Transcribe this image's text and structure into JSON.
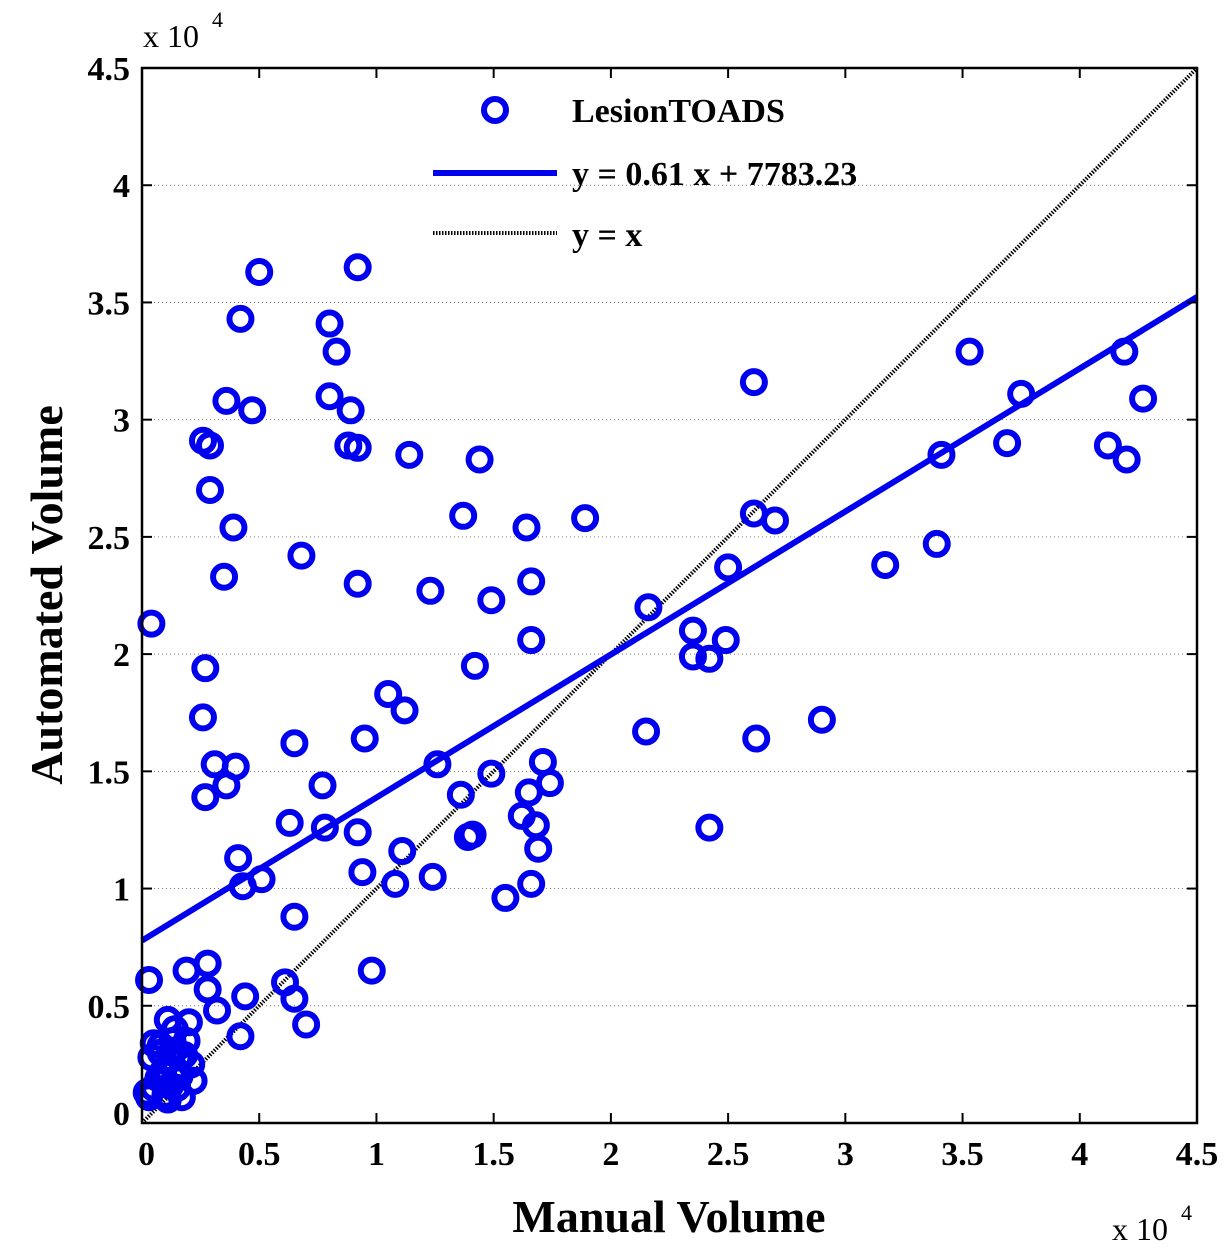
{
  "chart_data": {
    "type": "scatter",
    "xlabel": "Manual Volume",
    "ylabel": "Automated Volume",
    "x_multiplier": "x 10",
    "x_multiplier_exp": "4",
    "y_multiplier": "x 10",
    "y_multiplier_exp": "4",
    "xlim": [
      0,
      4.5
    ],
    "ylim": [
      0,
      4.5
    ],
    "xticks": [
      0,
      0.5,
      1,
      1.5,
      2,
      2.5,
      3,
      3.5,
      4,
      4.5
    ],
    "yticks": [
      0,
      0.5,
      1,
      1.5,
      2,
      2.5,
      3,
      3.5,
      4,
      4.5
    ],
    "xtick_labels": [
      "0",
      "0.5",
      "1",
      "1.5",
      "2",
      "2.5",
      "3",
      "3.5",
      "4",
      "4.5"
    ],
    "ytick_labels": [
      "0",
      "0.5",
      "1",
      "1.5",
      "2",
      "2.5",
      "3",
      "3.5",
      "4",
      "4.5"
    ],
    "grid": "y-dotted",
    "legend_position": "top-center",
    "colors": {
      "marker": "#0000ee",
      "fit": "#0000ee",
      "identity": "#000000"
    },
    "series": [
      {
        "name": "LesionTOADS",
        "kind": "scatter",
        "points": [
          [
            0.04,
            2.13
          ],
          [
            0.03,
            0.61
          ],
          [
            0.26,
            2.91
          ],
          [
            0.29,
            2.89
          ],
          [
            0.29,
            2.7
          ],
          [
            0.39,
            2.54
          ],
          [
            0.35,
            2.33
          ],
          [
            0.36,
            3.08
          ],
          [
            0.47,
            3.04
          ],
          [
            0.42,
            3.43
          ],
          [
            0.5,
            3.63
          ],
          [
            0.27,
            1.94
          ],
          [
            0.26,
            1.73
          ],
          [
            0.27,
            1.39
          ],
          [
            0.31,
            1.53
          ],
          [
            0.36,
            1.44
          ],
          [
            0.4,
            1.52
          ],
          [
            0.41,
            1.13
          ],
          [
            0.43,
            1.01
          ],
          [
            0.51,
            1.04
          ],
          [
            0.28,
            0.68
          ],
          [
            0.19,
            0.65
          ],
          [
            0.28,
            0.57
          ],
          [
            0.32,
            0.48
          ],
          [
            0.44,
            0.54
          ],
          [
            0.42,
            0.37
          ],
          [
            0.68,
            2.42
          ],
          [
            0.65,
            1.62
          ],
          [
            0.63,
            1.28
          ],
          [
            0.65,
            0.88
          ],
          [
            0.61,
            0.6
          ],
          [
            0.65,
            0.53
          ],
          [
            0.7,
            0.42
          ],
          [
            0.8,
            3.41
          ],
          [
            0.83,
            3.29
          ],
          [
            0.8,
            3.1
          ],
          [
            0.89,
            3.04
          ],
          [
            0.88,
            2.89
          ],
          [
            0.92,
            2.88
          ],
          [
            0.92,
            3.65
          ],
          [
            0.92,
            2.3
          ],
          [
            0.77,
            1.44
          ],
          [
            0.78,
            1.26
          ],
          [
            0.92,
            1.24
          ],
          [
            0.95,
            1.64
          ],
          [
            0.94,
            1.07
          ],
          [
            0.98,
            0.65
          ],
          [
            1.05,
            1.83
          ],
          [
            1.12,
            1.76
          ],
          [
            1.11,
            1.16
          ],
          [
            1.08,
            1.02
          ],
          [
            1.14,
            2.85
          ],
          [
            1.23,
            2.27
          ],
          [
            1.26,
            1.53
          ],
          [
            1.24,
            1.05
          ],
          [
            1.37,
            2.59
          ],
          [
            1.44,
            2.83
          ],
          [
            1.42,
            1.95
          ],
          [
            1.36,
            1.4
          ],
          [
            1.39,
            1.22
          ],
          [
            1.41,
            1.23
          ],
          [
            1.49,
            2.23
          ],
          [
            1.49,
            1.49
          ],
          [
            1.55,
            0.96
          ],
          [
            1.64,
            2.54
          ],
          [
            1.66,
            2.31
          ],
          [
            1.66,
            2.06
          ],
          [
            1.71,
            1.54
          ],
          [
            1.74,
            1.45
          ],
          [
            1.65,
            1.41
          ],
          [
            1.62,
            1.31
          ],
          [
            1.68,
            1.27
          ],
          [
            1.69,
            1.17
          ],
          [
            1.66,
            1.02
          ],
          [
            1.89,
            2.58
          ],
          [
            2.16,
            2.2
          ],
          [
            2.15,
            1.67
          ],
          [
            2.35,
            2.1
          ],
          [
            2.35,
            1.99
          ],
          [
            2.42,
            1.98
          ],
          [
            2.49,
            2.06
          ],
          [
            2.5,
            2.37
          ],
          [
            2.42,
            1.26
          ],
          [
            2.61,
            3.16
          ],
          [
            2.61,
            2.6
          ],
          [
            2.7,
            2.57
          ],
          [
            2.62,
            1.64
          ],
          [
            2.9,
            1.72
          ],
          [
            3.17,
            2.38
          ],
          [
            3.39,
            2.47
          ],
          [
            3.41,
            2.85
          ],
          [
            3.53,
            3.29
          ],
          [
            3.69,
            2.9
          ],
          [
            3.75,
            3.11
          ],
          [
            4.12,
            2.89
          ],
          [
            4.19,
            3.29
          ],
          [
            4.2,
            2.83
          ],
          [
            4.27,
            3.09
          ],
          [
            0.02,
            0.13
          ],
          [
            0.03,
            0.11
          ],
          [
            0.05,
            0.15
          ],
          [
            0.04,
            0.28
          ],
          [
            0.05,
            0.34
          ],
          [
            0.08,
            0.33
          ],
          [
            0.09,
            0.22
          ],
          [
            0.1,
            0.18
          ],
          [
            0.1,
            0.12
          ],
          [
            0.11,
            0.1
          ],
          [
            0.12,
            0.27
          ],
          [
            0.13,
            0.35
          ],
          [
            0.11,
            0.44
          ],
          [
            0.14,
            0.4
          ],
          [
            0.15,
            0.15
          ],
          [
            0.16,
            0.2
          ],
          [
            0.17,
            0.11
          ],
          [
            0.18,
            0.29
          ],
          [
            0.2,
            0.43
          ],
          [
            0.21,
            0.25
          ],
          [
            0.22,
            0.18
          ],
          [
            0.19,
            0.35
          ],
          [
            0.14,
            0.23
          ],
          [
            0.08,
            0.3
          ],
          [
            0.13,
            0.3
          ],
          [
            0.16,
            0.28
          ],
          [
            0.07,
            0.19
          ],
          [
            0.12,
            0.16
          ]
        ]
      },
      {
        "name": "y = 0.61 x + 7783.23",
        "kind": "line",
        "slope": 0.61,
        "intercept": 0.778323
      },
      {
        "name": "y = x",
        "kind": "line",
        "slope": 1,
        "intercept": 0
      }
    ]
  }
}
